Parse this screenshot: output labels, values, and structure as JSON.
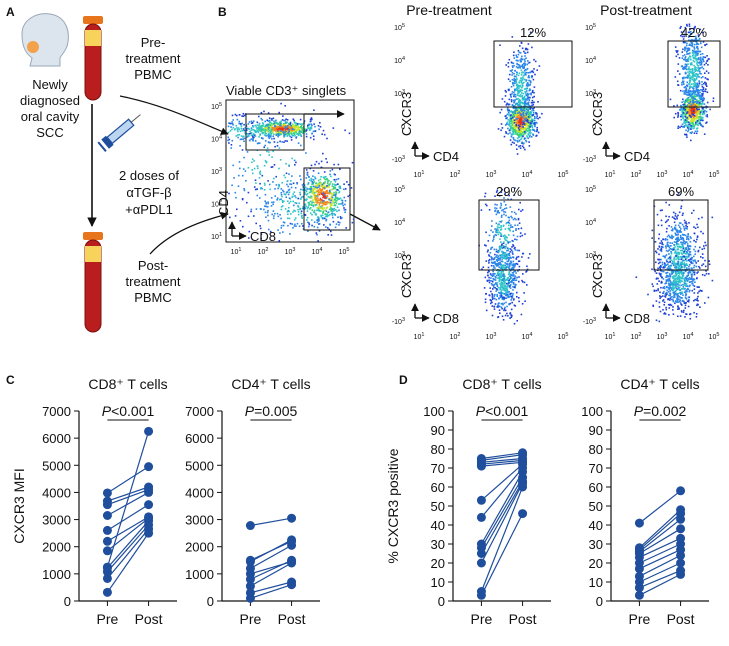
{
  "panels": {
    "A": {
      "label": "A",
      "patient": [
        "Newly",
        "diagnosed",
        "oral cavity",
        "SCC"
      ],
      "pre_blood": [
        "Pre-",
        "treatment",
        "PBMC"
      ],
      "treatment": [
        "2 doses of",
        "αTGF-β",
        "+αPDL1"
      ],
      "post_blood": [
        "Post-",
        "treatment",
        "PBMC"
      ]
    },
    "B": {
      "label": "B",
      "gate_title": "Viable CD3⁺ singlets",
      "gate_x_axis": "CD8",
      "gate_y_axis": "CD4",
      "col_headers": [
        "Pre-treatment",
        "Post-treatment"
      ],
      "density_colors": [
        "#1f3fd6",
        "#2a86e8",
        "#2ec4c9",
        "#39d27a",
        "#c9e52a",
        "#f28a1c",
        "#e8311c"
      ],
      "plots": [
        {
          "id": "cd4-pre",
          "percent": "12%",
          "x_axis": "CD4",
          "y_axis": "CXCR3"
        },
        {
          "id": "cd4-post",
          "percent": "42%",
          "x_axis": "CD4",
          "y_axis": "CXCR3"
        },
        {
          "id": "cd8-pre",
          "percent": "29%",
          "x_axis": "CD8",
          "y_axis": "CXCR3"
        },
        {
          "id": "cd8-post",
          "percent": "69%",
          "x_axis": "CD8",
          "y_axis": "CXCR3"
        }
      ],
      "y_ticks": [
        {
          "base": "10",
          "exp": "5"
        },
        {
          "base": "10",
          "exp": "4"
        },
        {
          "base": "10",
          "exp": "3"
        },
        {
          "base": "0",
          "exp": ""
        },
        {
          "base": "-10",
          "exp": "3"
        }
      ],
      "gate_y_ticks": [
        {
          "base": "10",
          "exp": "5"
        },
        {
          "base": "10",
          "exp": "4"
        },
        {
          "base": "10",
          "exp": "3"
        },
        {
          "base": "10",
          "exp": "2"
        },
        {
          "base": "10",
          "exp": "1"
        }
      ],
      "x_ticks": [
        {
          "base": "10",
          "exp": "1"
        },
        {
          "base": "10",
          "exp": "2"
        },
        {
          "base": "10",
          "exp": "3"
        },
        {
          "base": "10",
          "exp": "4"
        },
        {
          "base": "10",
          "exp": "5"
        }
      ]
    },
    "C": {
      "label": "C"
    },
    "D": {
      "label": "D"
    }
  },
  "accent_color": "#1f4e9c",
  "chart_data": [
    {
      "type": "line",
      "panel": "C",
      "title": "CD8⁺ T cells",
      "pvalue": "P<0.001",
      "ylabel": "CXCR3 MFI",
      "xlabel": "",
      "categories": [
        "Pre",
        "Post"
      ],
      "ylim": [
        0,
        7000
      ],
      "yticks": [
        0,
        1000,
        2000,
        3000,
        4000,
        5000,
        6000,
        7000
      ],
      "pairs": [
        [
          320,
          2500
        ],
        [
          830,
          2650
        ],
        [
          1080,
          2800
        ],
        [
          1220,
          2950
        ],
        [
          1850,
          3050
        ],
        [
          2200,
          3100
        ],
        [
          2600,
          3550
        ],
        [
          3150,
          4000
        ],
        [
          3550,
          4100
        ],
        [
          3680,
          4200
        ],
        [
          3980,
          4950
        ],
        [
          1250,
          6250
        ]
      ]
    },
    {
      "type": "line",
      "panel": "C",
      "title": "CD4⁺ T cells",
      "pvalue": "P=0.005",
      "ylabel": "",
      "xlabel": "",
      "categories": [
        "Pre",
        "Post"
      ],
      "ylim": [
        0,
        7000
      ],
      "yticks": [
        0,
        1000,
        2000,
        3000,
        4000,
        5000,
        6000,
        7000
      ],
      "pairs": [
        [
          100,
          600
        ],
        [
          300,
          700
        ],
        [
          550,
          1400
        ],
        [
          800,
          1500
        ],
        [
          1000,
          1450
        ],
        [
          1200,
          2050
        ],
        [
          1450,
          2250
        ],
        [
          1500,
          2200
        ],
        [
          2780,
          3050
        ]
      ]
    },
    {
      "type": "line",
      "panel": "D",
      "title": "CD8⁺ T cells",
      "pvalue": "P<0.001",
      "ylabel": "% CXCR3 positive",
      "xlabel": "",
      "categories": [
        "Pre",
        "Post"
      ],
      "ylim": [
        0,
        100
      ],
      "yticks": [
        0,
        10,
        20,
        30,
        40,
        50,
        60,
        70,
        80,
        90,
        100
      ],
      "pairs": [
        [
          3,
          46
        ],
        [
          5,
          60
        ],
        [
          20,
          62
        ],
        [
          25,
          63
        ],
        [
          28,
          65
        ],
        [
          30,
          68
        ],
        [
          44,
          70
        ],
        [
          53,
          72
        ],
        [
          71,
          73
        ],
        [
          72,
          74
        ],
        [
          73,
          75
        ],
        [
          74,
          77
        ],
        [
          75,
          78
        ]
      ]
    },
    {
      "type": "line",
      "panel": "D",
      "title": "CD4⁺ T cells",
      "pvalue": "P=0.002",
      "ylabel": "",
      "xlabel": "",
      "categories": [
        "Pre",
        "Post"
      ],
      "ylim": [
        0,
        100
      ],
      "yticks": [
        0,
        10,
        20,
        30,
        40,
        50,
        60,
        70,
        80,
        90,
        100
      ],
      "pairs": [
        [
          3,
          14
        ],
        [
          7,
          16
        ],
        [
          10,
          20
        ],
        [
          13,
          24
        ],
        [
          17,
          27
        ],
        [
          20,
          30
        ],
        [
          23,
          33
        ],
        [
          25,
          38
        ],
        [
          26,
          43
        ],
        [
          27,
          46
        ],
        [
          28,
          48
        ],
        [
          41,
          58
        ]
      ]
    }
  ]
}
